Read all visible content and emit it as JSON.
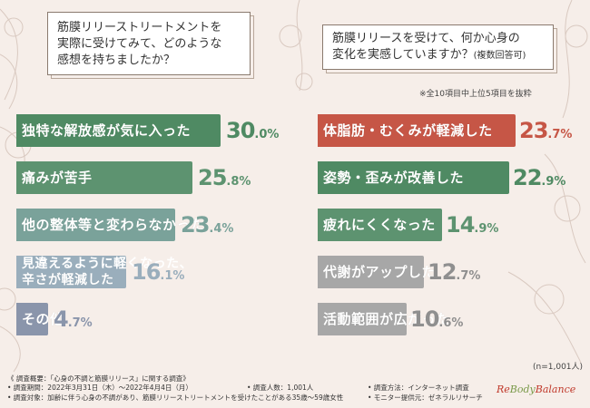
{
  "questions": {
    "left": [
      "筋膜リリーストリートメントを",
      "実際に受けてみて、どのような",
      "感想を持ちましたか？"
    ],
    "right_line1": "筋膜リリースを受けて、何か心身の",
    "right_line2": "変化を実感していますか？",
    "right_note": "(複数回答可)"
  },
  "notes": {
    "top_right": "※全10項目中上位5項目を抜粋",
    "sample": "(n=1,001人)"
  },
  "footer": {
    "survey_title": "《 調査概要：「心身の不調と筋膜リリース」に関する調査》",
    "period": "• 調査期間：2022年3月31日（木）～2022年4月4日（月）",
    "target": "• 調査対象：加齢に伴う心身の不調があり、筋膜リリーストリートメントを受けたことがある35歳～59歳女性",
    "count": "• 調査人数：1,001人",
    "method": "• 調査方法：インターネット調査",
    "provider": "• モニター提供元：ゼネラルリサーチ"
  },
  "logo": {
    "part1": "Re",
    "part2": "Body",
    "part3": "Balance"
  },
  "colors": {
    "left_bars": [
      "#4f8a63",
      "#5d9370",
      "#7aa29a",
      "#9aaebc",
      "#8a95ab"
    ],
    "left_pcts": [
      "#4f8a63",
      "#5d9370",
      "#7aa29a",
      "#9aaebc",
      "#8a95ab"
    ],
    "right_bars": [
      "#c65646",
      "#4f8a63",
      "#5d9370",
      "#a7a7a7",
      "#a7a7a7"
    ],
    "right_pcts": [
      "#c65646",
      "#4f8a63",
      "#5d9370",
      "#8f8f8f",
      "#8f8f8f"
    ]
  },
  "chart_data": [
    {
      "type": "bar",
      "title": "筋膜リリーストリートメントを実際に受けてみて、どのような感想を持ちましたか？",
      "orientation": "horizontal",
      "categories": [
        "独特な解放感が気に入った",
        "痛みが苦手",
        "他の整体等と変わらなかった",
        "見違えるように軽くなった、辛さが軽減した",
        "その他"
      ],
      "values": [
        30.0,
        25.8,
        23.4,
        16.1,
        4.7
      ],
      "labels": [
        {
          "int": "30",
          "dec": ".0%"
        },
        {
          "int": "25",
          "dec": ".8%"
        },
        {
          "int": "23",
          "dec": ".4%"
        },
        {
          "int": "16",
          "dec": ".1%"
        },
        {
          "int": "4",
          "dec": ".7%"
        }
      ],
      "label_lines": [
        [
          "独特な解放感が気に入った"
        ],
        [
          "痛みが苦手"
        ],
        [
          "他の整体等と変わらなかった"
        ],
        [
          "見違えるように軽くなった、",
          "辛さが軽減した"
        ],
        [
          "その他"
        ]
      ],
      "unit": "%",
      "xlim": [
        0,
        30.0
      ]
    },
    {
      "type": "bar",
      "title": "筋膜リリースを受けて、何か心身の変化を実感していますか？(複数回答可)",
      "orientation": "horizontal",
      "categories": [
        "体脂肪・むくみが軽減した",
        "姿勢・歪みが改善した",
        "疲れにくくなった",
        "代謝がアップした",
        "活動範囲が広がった"
      ],
      "values": [
        23.7,
        22.9,
        14.9,
        12.7,
        10.6
      ],
      "labels": [
        {
          "int": "23",
          "dec": ".7%"
        },
        {
          "int": "22",
          "dec": ".9%"
        },
        {
          "int": "14",
          "dec": ".9%"
        },
        {
          "int": "12",
          "dec": ".7%"
        },
        {
          "int": "10",
          "dec": ".6%"
        }
      ],
      "label_lines": [
        [
          "体脂肪・むくみが軽減した"
        ],
        [
          "姿勢・歪みが改善した"
        ],
        [
          "疲れにくくなった"
        ],
        [
          "代謝がアップした"
        ],
        [
          "活動範囲が広がった"
        ]
      ],
      "unit": "%",
      "xlim": [
        0,
        23.7
      ]
    }
  ]
}
